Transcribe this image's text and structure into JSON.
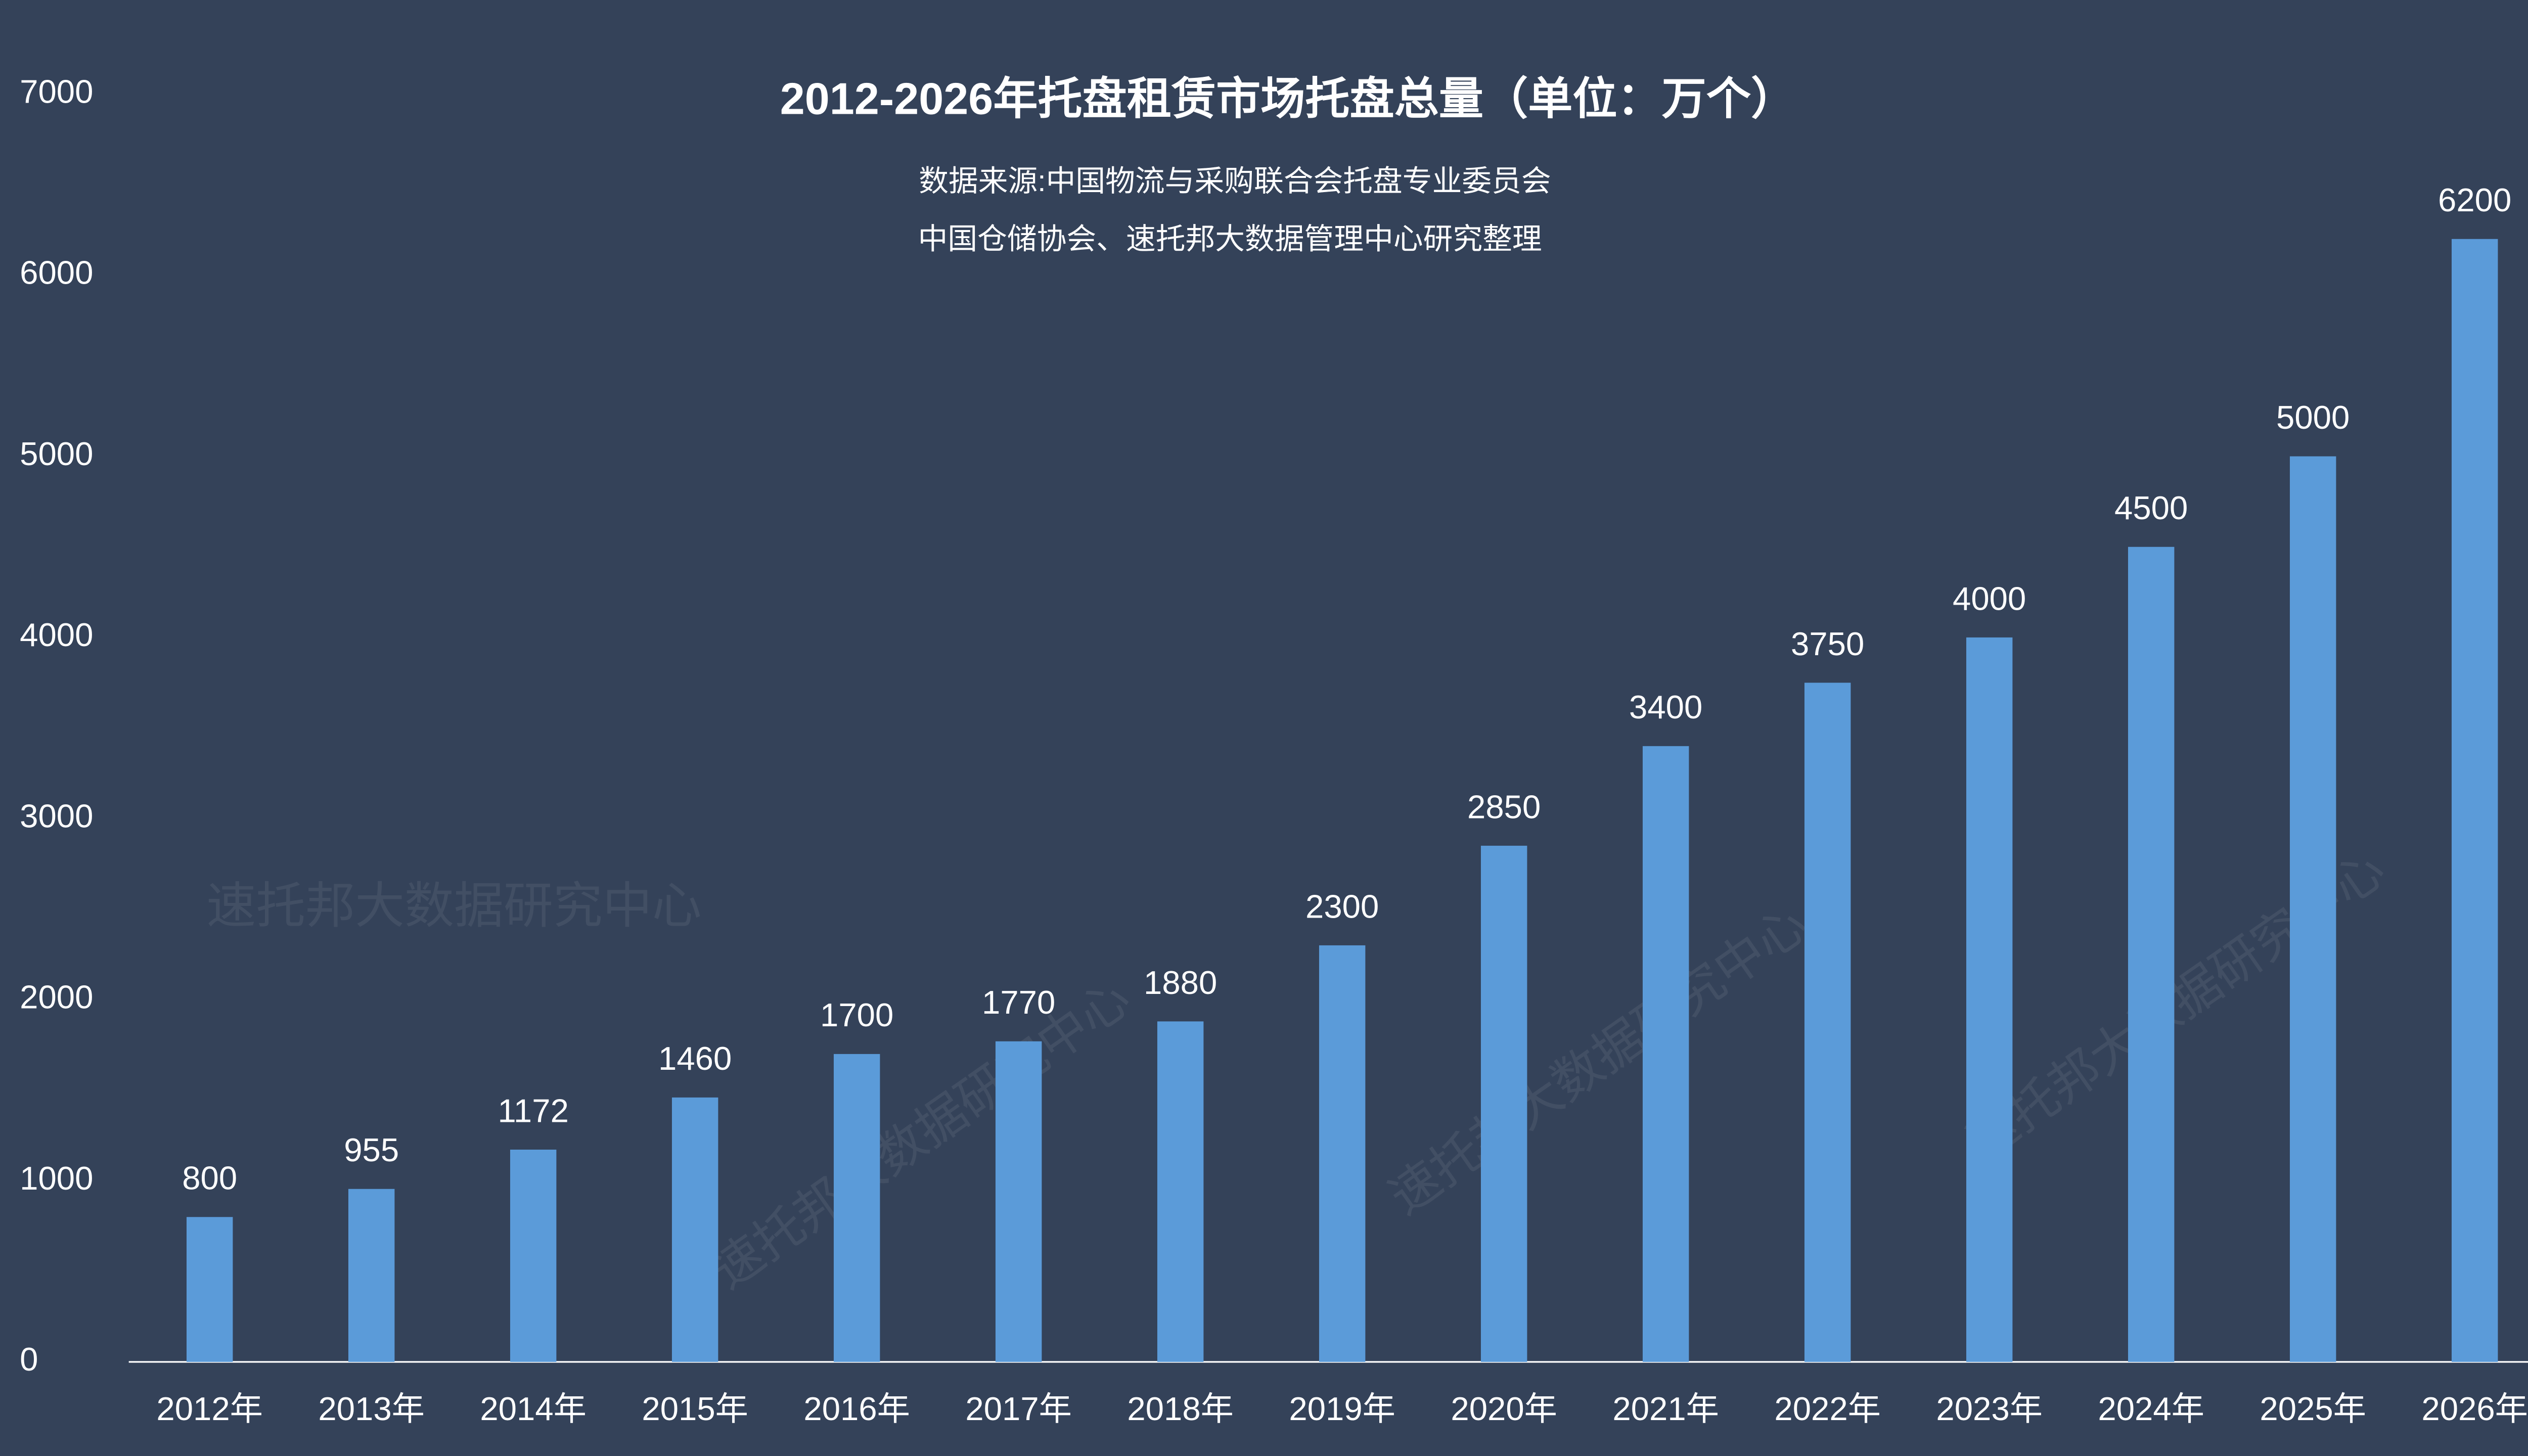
{
  "chart_data": {
    "type": "bar",
    "title": "2012-2026年托盘租赁市场托盘总量（单位：万个）",
    "subtitle": [
      "数据来源:中国物流与采购联合会托盘专业委员会",
      "中国仓储协会、速托邦大数据管理中心研究整理"
    ],
    "watermark": "速托邦大数据研究中心",
    "categories": [
      "2012年",
      "2013年",
      "2014年",
      "2015年",
      "2016年",
      "2017年",
      "2018年",
      "2019年",
      "2020年",
      "2021年",
      "2022年",
      "2023年",
      "2024年",
      "2025年",
      "2026年"
    ],
    "values": [
      800,
      955,
      1172,
      1460,
      1700,
      1770,
      1880,
      2300,
      2850,
      3400,
      3750,
      4000,
      4500,
      5000,
      6200
    ],
    "color": "#5b9bd9",
    "ylim": [
      0,
      7000
    ],
    "yticks": [
      0,
      1000,
      2000,
      3000,
      4000,
      5000,
      6000,
      7000
    ],
    "grid": false
  }
}
